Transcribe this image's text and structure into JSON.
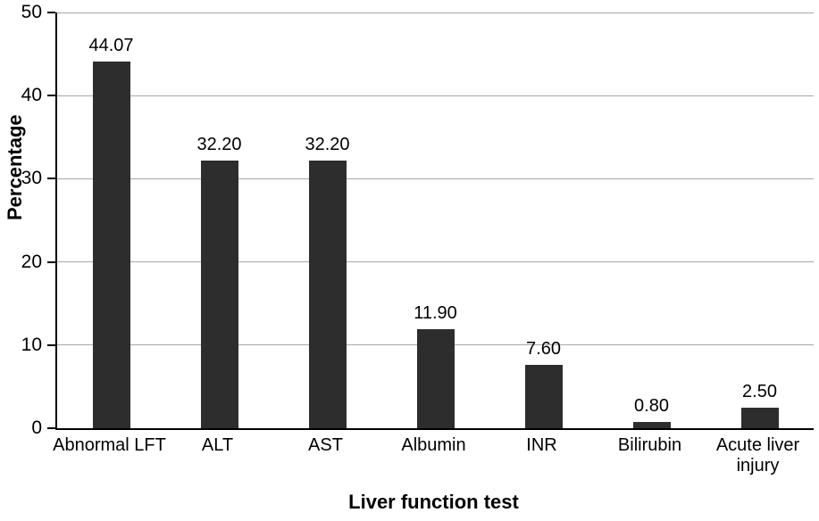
{
  "chart_data": {
    "type": "bar",
    "title": "",
    "xlabel": "Liver function test",
    "ylabel": "Percentage",
    "categories": [
      "Abnormal LFT",
      "ALT",
      "AST",
      "Albumin",
      "INR",
      "Bilirubin",
      "Acute liver injury"
    ],
    "values": [
      44.07,
      32.2,
      32.2,
      11.9,
      7.6,
      0.8,
      2.5
    ],
    "value_labels": [
      "44.07",
      "32.20",
      "32.20",
      "11.90",
      "7.60",
      "0.80",
      "2.50"
    ],
    "ytick_labels": [
      "0",
      "10",
      "20",
      "30",
      "40",
      "50"
    ],
    "yticks": [
      0,
      10,
      20,
      30,
      40,
      50
    ],
    "ylim": [
      0,
      50
    ],
    "grid": true,
    "legend_position": "none",
    "bar_color": "#2d2d2d",
    "gridline_color": "#a8a8a8",
    "axis_color": "#000000"
  }
}
